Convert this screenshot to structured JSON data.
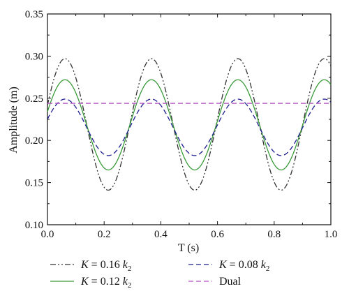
{
  "chart_data": {
    "type": "line",
    "title": "",
    "xlabel": "T (s)",
    "ylabel": "Amplitude (m)",
    "xlim": [
      0.0,
      1.0
    ],
    "ylim": [
      0.1,
      0.35
    ],
    "x_ticks": [
      "0.0",
      "0.2",
      "0.4",
      "0.6",
      "0.8",
      "1.0"
    ],
    "y_ticks": [
      "0.10",
      "0.15",
      "0.20",
      "0.25",
      "0.30",
      "0.35"
    ],
    "grid": false,
    "legend_position": "bottom",
    "period": 0.305,
    "series": [
      {
        "name": "K = 0.16 k2",
        "legend_prefix": "K",
        "legend_value": " = 0.16 ",
        "legend_k": "k",
        "legend_sub": "2",
        "color": "#333333",
        "dash": "dash-dot-dot",
        "offset": 0.219,
        "amplitude": 0.078,
        "peak_time": 0.062,
        "x": [
          0.0,
          0.062,
          0.215,
          0.367,
          0.52,
          0.672,
          0.825,
          0.977,
          1.0
        ],
        "y": [
          0.264,
          0.297,
          0.141,
          0.297,
          0.141,
          0.297,
          0.141,
          0.297,
          0.289
        ]
      },
      {
        "name": "K = 0.12 k2",
        "legend_prefix": "K",
        "legend_value": " = 0.12 ",
        "legend_k": "k",
        "legend_sub": "2",
        "color": "#3a9a3a",
        "dash": "solid",
        "offset": 0.2185,
        "amplitude": 0.0535,
        "peak_time": 0.062,
        "x": [
          0.0,
          0.062,
          0.215,
          0.367,
          0.52,
          0.672,
          0.825,
          0.977,
          1.0
        ],
        "y": [
          0.24,
          0.272,
          0.165,
          0.272,
          0.165,
          0.272,
          0.165,
          0.272,
          0.267
        ]
      },
      {
        "name": "K = 0.08 k2",
        "legend_prefix": "K",
        "legend_value": " = 0.08 ",
        "legend_k": "k",
        "legend_sub": "2",
        "color": "#1f1f8f",
        "dash": "dash",
        "offset": 0.2155,
        "amplitude": 0.0335,
        "peak_time": 0.062,
        "x": [
          0.0,
          0.062,
          0.215,
          0.367,
          0.52,
          0.672,
          0.825,
          0.977,
          1.0
        ],
        "y": [
          0.229,
          0.249,
          0.182,
          0.249,
          0.182,
          0.249,
          0.182,
          0.249,
          0.246
        ]
      },
      {
        "name": "Dual",
        "legend_prefix": "",
        "legend_value": "Dual",
        "legend_k": "",
        "legend_sub": "",
        "color": "#b24fc0",
        "dash": "dash",
        "constant": 0.244,
        "x": [
          0.0,
          1.0
        ],
        "y": [
          0.244,
          0.244
        ]
      }
    ]
  }
}
